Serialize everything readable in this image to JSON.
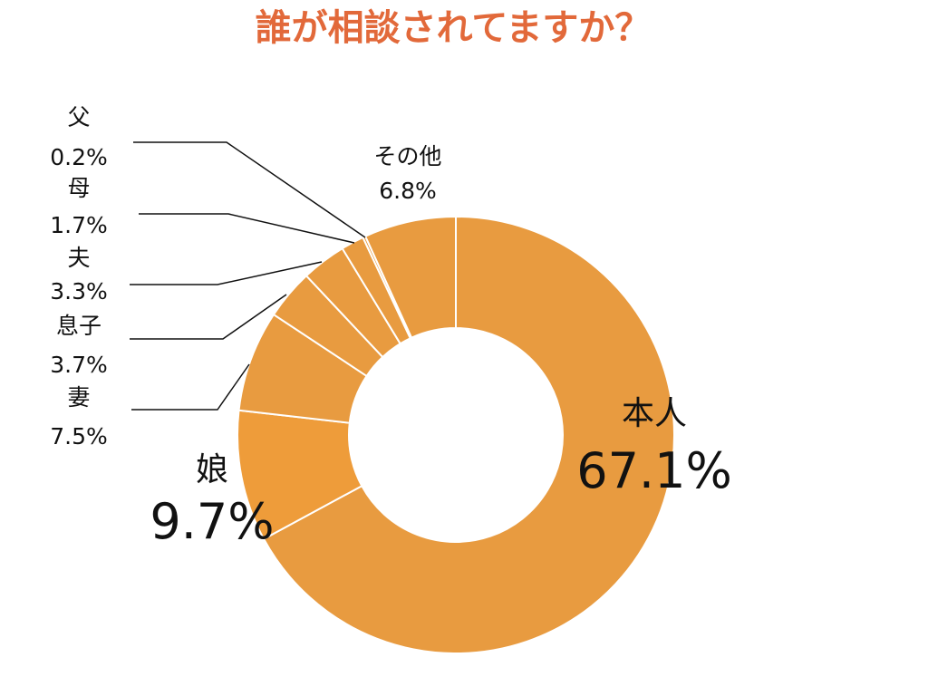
{
  "chart_data": {
    "type": "pie",
    "variant": "donut",
    "title": "誰が相談されてますか？",
    "start_angle_deg": 0,
    "direction": "clockwise",
    "slices": [
      {
        "label": "本人",
        "value": 67.1,
        "display": "67.1%",
        "color": "#e89b40"
      },
      {
        "label": "娘",
        "value": 9.7,
        "display": "9.7%",
        "color": "#ee9c3a"
      },
      {
        "label": "妻",
        "value": 7.5,
        "display": "7.5%",
        "color": "#e89b40"
      },
      {
        "label": "息子",
        "value": 3.7,
        "display": "3.7%",
        "color": "#e89b40"
      },
      {
        "label": "夫",
        "value": 3.3,
        "display": "3.3%",
        "color": "#e89b40"
      },
      {
        "label": "母",
        "value": 1.7,
        "display": "1.7%",
        "color": "#e89b40"
      },
      {
        "label": "父",
        "value": 0.2,
        "display": "0.2%",
        "color": "#e89b40"
      },
      {
        "label": "その他",
        "value": 6.8,
        "display": "6.8%",
        "color": "#e89b40"
      }
    ],
    "title_color": "#e2693a",
    "separator_color": "#ffffff"
  }
}
